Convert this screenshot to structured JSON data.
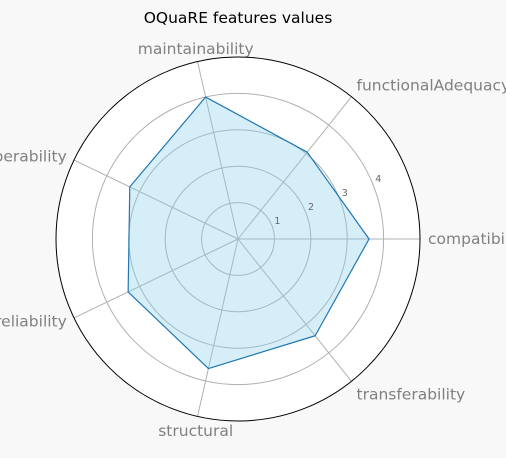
{
  "chart_data": {
    "type": "radar",
    "title": "OQuaRE features values",
    "categories": [
      "compatibility",
      "functionalAdequacy",
      "maintainability",
      "operability",
      "reliability",
      "structural",
      "transferability"
    ],
    "series": [
      {
        "values": [
          3.6,
          3.05,
          4.0,
          3.3,
          3.35,
          3.65,
          3.4
        ]
      }
    ],
    "rlim": [
      0,
      5
    ],
    "rticks": [
      1,
      2,
      3,
      4
    ],
    "rtick_labels": [
      "1",
      "2",
      "3",
      "4"
    ],
    "grid": true,
    "colors": {
      "line": "#1f77b4",
      "fill": "#87ceeb",
      "grid": "#b0b0b0",
      "spine": "#000000",
      "label": "#808080",
      "background": "#f8f8f8"
    }
  }
}
